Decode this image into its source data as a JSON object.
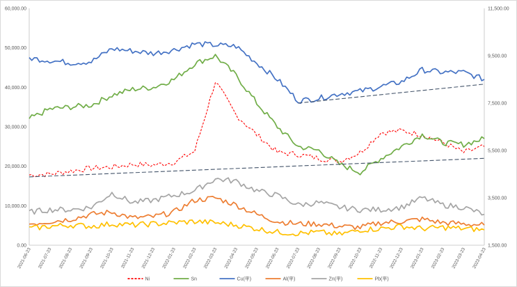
{
  "chart_data": {
    "type": "line",
    "title": "",
    "xlabel": "",
    "ylabel": "",
    "grid": false,
    "legend_position": "bottom",
    "x_tick_labels": [
      "2021-06-23",
      "2021-07-23",
      "2021-08-23",
      "2021-09-23",
      "2021-10-23",
      "2021-11-23",
      "2021-12-23",
      "2022-01-23",
      "2022-02-23",
      "2022-03-23",
      "2022-04-23",
      "2022-05-23",
      "2022-06-23",
      "2022-07-23",
      "2022-08-23",
      "2022-09-23",
      "2022-10-23",
      "2022-11-23",
      "2022-12-23",
      "2023-01-23",
      "2023-02-23",
      "2023-03-23",
      "2023-04-23"
    ],
    "left_axis": {
      "ylim": [
        0,
        60000
      ],
      "tick_labels": [
        "0.00",
        "10,000.00",
        "20,000.00",
        "30,000.00",
        "40,000.00",
        "50,000.00",
        "60,000.00"
      ]
    },
    "right_axis": {
      "ylim": [
        1500,
        11500
      ],
      "tick_labels": [
        "1,500.00",
        "3,500.00",
        "5,500.00",
        "7,500.00",
        "9,500.00",
        "11,500.00"
      ]
    },
    "series": [
      {
        "name": "Ni",
        "axis": "left",
        "color": "#ff0000",
        "style": "dashed",
        "values": [
          17800,
          18000,
          18800,
          19500,
          19800,
          20500,
          20300,
          21000,
          23800,
          41500,
          33000,
          28000,
          23500,
          23000,
          22000,
          21300,
          23500,
          28500,
          29000,
          28000,
          26000,
          23500,
          25000
        ]
      },
      {
        "name": "Sn",
        "axis": "left",
        "color": "#70ad47",
        "style": "solid",
        "values": [
          32000,
          34500,
          35000,
          35500,
          38000,
          39500,
          40000,
          42000,
          46000,
          48000,
          43000,
          36000,
          30000,
          25000,
          24000,
          20500,
          18500,
          22000,
          25000,
          28000,
          26000,
          25500,
          27000
        ]
      },
      {
        "name": "Cu(平)",
        "axis": "right",
        "color": "#4472c4",
        "style": "solid",
        "values": [
          9400,
          9300,
          9200,
          9250,
          9800,
          9700,
          9600,
          9750,
          10000,
          9950,
          9900,
          9200,
          8500,
          7600,
          7700,
          7900,
          8000,
          8200,
          8400,
          8900,
          8800,
          8800,
          8500
        ]
      },
      {
        "name": "Al(平)",
        "axis": "right",
        "color": "#ed7d31",
        "style": "solid",
        "values": [
          2400,
          2500,
          2600,
          2800,
          2900,
          2650,
          2700,
          2900,
          3400,
          3500,
          3200,
          2800,
          2500,
          2400,
          2400,
          2300,
          2250,
          2450,
          2500,
          2600,
          2450,
          2400,
          2350
        ]
      },
      {
        "name": "Zn(平)",
        "axis": "right",
        "color": "#a5a5a5",
        "style": "solid",
        "values": [
          2900,
          3000,
          3000,
          3100,
          3700,
          3300,
          3400,
          3600,
          3800,
          4300,
          4200,
          3800,
          3600,
          3200,
          3300,
          3100,
          3000,
          3000,
          3100,
          3500,
          3200,
          3100,
          2800
        ]
      },
      {
        "name": "Pb(平)",
        "axis": "right",
        "color": "#ffc000",
        "style": "solid",
        "values": [
          2200,
          2300,
          2350,
          2300,
          2400,
          2350,
          2400,
          2450,
          2500,
          2450,
          2350,
          2200,
          2050,
          2000,
          2050,
          1950,
          2150,
          2200,
          2300,
          2200,
          2250,
          2200,
          2150
        ]
      }
    ],
    "trendlines": [
      {
        "series": "Ni",
        "color": "#44546a",
        "style": "dashed",
        "x_range": [
          "2021-06-23",
          "2023-04-23"
        ],
        "y_range": [
          17300,
          22000
        ],
        "axis": "left"
      },
      {
        "series": "Cu(平)",
        "color": "#44546a",
        "style": "dashed",
        "x_range": [
          "2022-07-23",
          "2023-04-23"
        ],
        "y_range": [
          7500,
          8300
        ],
        "axis": "right"
      }
    ]
  }
}
